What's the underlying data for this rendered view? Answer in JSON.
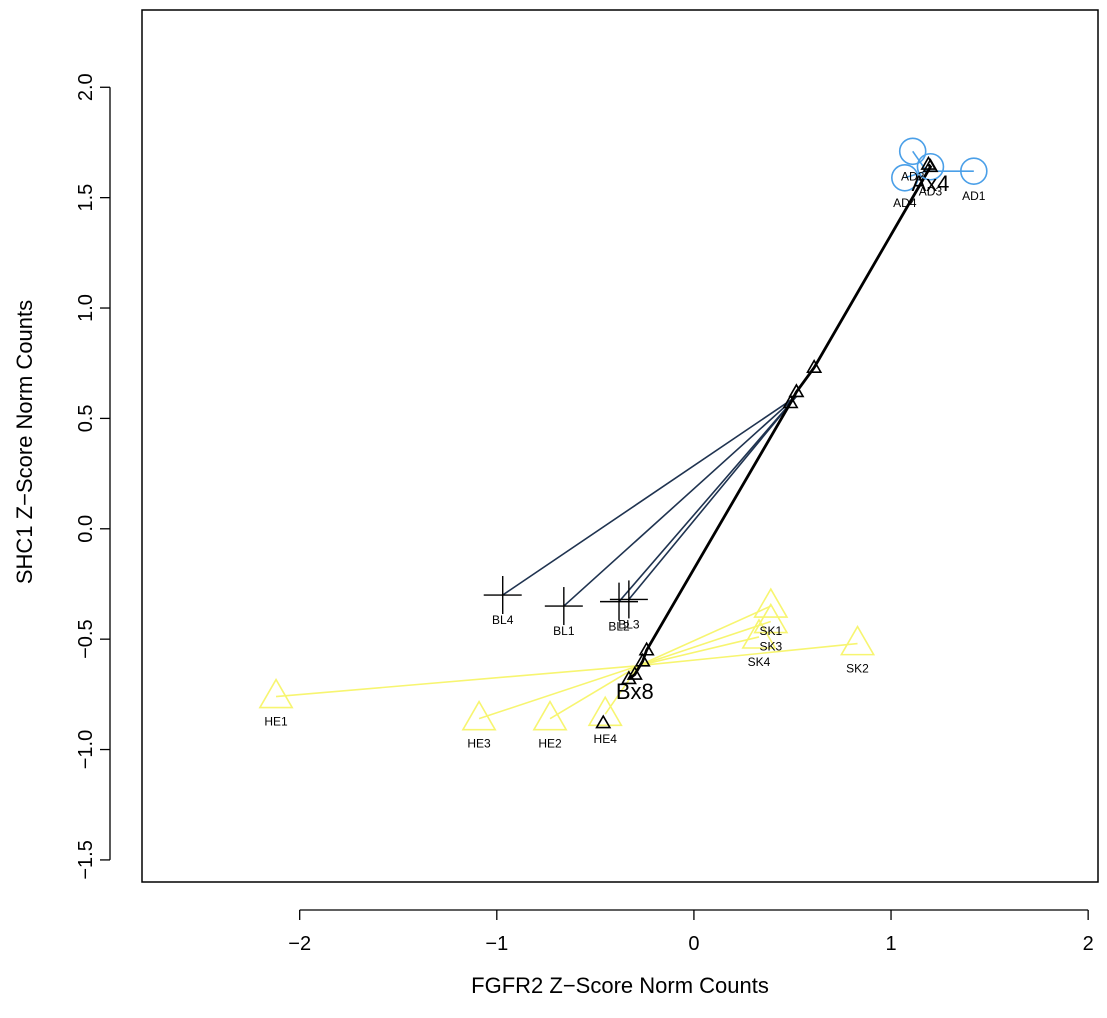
{
  "chart_data": {
    "type": "scatter",
    "title": "",
    "xlabel": "FGFR2 Z−Score Norm Counts",
    "ylabel": "SHC1 Z−Score Norm Counts",
    "xlim": [
      -2.8,
      2.05
    ],
    "ylim": [
      -1.6,
      2.35
    ],
    "x_ticks": [
      -2,
      -1,
      0,
      1,
      2
    ],
    "x_tick_labels": [
      "−2",
      "−1",
      "0",
      "1",
      "2"
    ],
    "y_ticks": [
      -1.5,
      -1.0,
      -0.5,
      0.0,
      0.5,
      1.0,
      1.5,
      2.0
    ],
    "y_tick_labels": [
      "−1.5",
      "−1.0",
      "−0.5",
      "0.0",
      "0.5",
      "1.0",
      "1.5",
      "2.0"
    ],
    "grid": false,
    "series": [
      {
        "group": "AD",
        "color": "#4A9FE8",
        "marker": "circle",
        "center": [
          1.18,
          1.62
        ],
        "points": [
          {
            "label": "AD1",
            "x": 1.42,
            "y": 1.62
          },
          {
            "label": "AD2",
            "x": 1.11,
            "y": 1.71
          },
          {
            "label": "AD3",
            "x": 1.2,
            "y": 1.64
          },
          {
            "label": "AD4",
            "x": 1.07,
            "y": 1.59
          }
        ]
      },
      {
        "group": "BL",
        "color": "#1f3350",
        "marker": "plus",
        "center": [
          0.52,
          0.6
        ],
        "points": [
          {
            "label": "BL1",
            "x": -0.66,
            "y": -0.35
          },
          {
            "label": "BL2",
            "x": -0.38,
            "y": -0.33
          },
          {
            "label": "BL3",
            "x": -0.33,
            "y": -0.32
          },
          {
            "label": "BL4",
            "x": -0.97,
            "y": -0.3
          }
        ]
      },
      {
        "group": "SK",
        "color": "#F7F570",
        "marker": "triangle",
        "center": [
          -0.28,
          -0.62
        ],
        "points": [
          {
            "label": "SK1",
            "x": 0.39,
            "y": -0.35
          },
          {
            "label": "SK2",
            "x": 0.83,
            "y": -0.52
          },
          {
            "label": "SK3",
            "x": 0.39,
            "y": -0.42
          },
          {
            "label": "SK4",
            "x": 0.33,
            "y": -0.49
          }
        ]
      },
      {
        "group": "HE",
        "color": "#F7F570",
        "marker": "triangle",
        "center": [
          -0.28,
          -0.62
        ],
        "points": [
          {
            "label": "HE1",
            "x": -2.12,
            "y": -0.76
          },
          {
            "label": "HE2",
            "x": -0.73,
            "y": -0.86
          },
          {
            "label": "HE3",
            "x": -1.09,
            "y": -0.86
          },
          {
            "label": "HE4",
            "x": -0.45,
            "y": -0.84
          }
        ]
      }
    ],
    "trajectories": [
      {
        "label": "Ax4",
        "label_at": [
          1.2,
          1.53
        ],
        "color": "#000000",
        "points": [
          [
            1.19,
            1.65
          ],
          [
            1.2,
            1.64
          ],
          [
            0.61,
            0.73
          ],
          [
            0.52,
            0.62
          ],
          [
            0.49,
            0.57
          ],
          [
            -0.24,
            -0.55
          ],
          [
            -0.26,
            -0.6
          ],
          [
            -0.3,
            -0.66
          ],
          [
            -0.33,
            -0.68
          ]
        ]
      }
    ],
    "extra_markers": [
      {
        "x": -0.46,
        "y": -0.88,
        "color": "#000000",
        "marker": "triangle"
      }
    ],
    "centroid_labels": [
      {
        "text": "Bx8",
        "x": -0.3,
        "y": -0.77
      }
    ]
  }
}
